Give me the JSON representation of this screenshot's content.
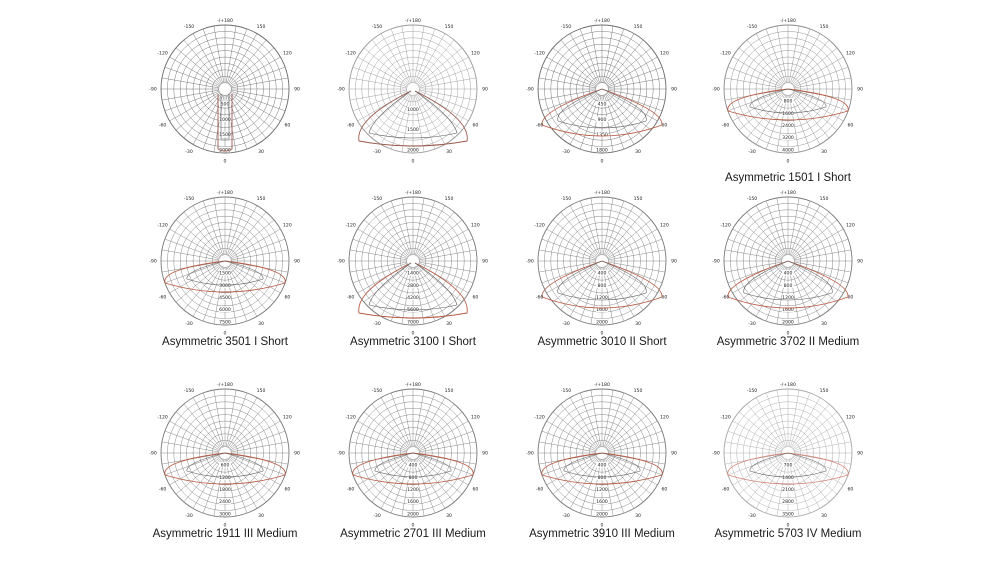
{
  "charts": [
    {
      "caption": "",
      "angle_top": "-/+180",
      "angle_labels": [
        "-150",
        "150",
        "-120",
        "120",
        "-90",
        "90",
        "-60",
        "60",
        "-30",
        "30",
        "0"
      ],
      "radial_labels": [
        "",
        "500",
        "1000",
        "1500",
        "2000"
      ],
      "curve_color": "#9a5a4c",
      "grid_color": "#6b6b6b"
    },
    {
      "caption": "",
      "angle_top": "-/+180",
      "angle_labels": [
        "-150",
        "150",
        "-120",
        "120",
        "-90",
        "90",
        "-60",
        "60",
        "-30",
        "30",
        "0"
      ],
      "radial_labels": [
        "",
        "1000",
        "1500",
        "2000"
      ],
      "curve_color": "#9a5a4c",
      "grid_color": "#9a9a9a"
    },
    {
      "caption": "",
      "angle_top": "-/+180",
      "angle_labels": [
        "-150",
        "150",
        "-120",
        "120",
        "-90",
        "90",
        "-60",
        "60",
        "-30",
        "30",
        "0"
      ],
      "radial_labels": [
        "",
        "450",
        "900",
        "1350",
        "1800"
      ],
      "curve_color": "#b85c44",
      "grid_color": "#6b6b6b"
    },
    {
      "caption": "Asymmetric 1501 I Short",
      "angle_top": "-/+180",
      "angle_labels": [
        "-150",
        "150",
        "-120",
        "120",
        "-90",
        "90",
        "-60",
        "60",
        "-30",
        "30",
        "0"
      ],
      "radial_labels": [
        "",
        "800",
        "1600",
        "2400",
        "3200",
        "4000"
      ],
      "curve_color": "#b85c44",
      "grid_color": "#8a8a8a"
    },
    {
      "caption": "Asymmetric 3501 I Short",
      "angle_top": "-/+180",
      "angle_labels": [
        "-150",
        "150",
        "-120",
        "120",
        "-90",
        "90",
        "-60",
        "60",
        "-30",
        "30",
        "0"
      ],
      "radial_labels": [
        "",
        "1500",
        "3000",
        "4500",
        "6000",
        "7500"
      ],
      "curve_color": "#b85c44",
      "grid_color": "#7a7a7a"
    },
    {
      "caption": "Asymmetric 3100 I Short",
      "angle_top": "-/+180",
      "angle_labels": [
        "-150",
        "150",
        "-120",
        "120",
        "-90",
        "90",
        "-60",
        "60",
        "-30",
        "30",
        "0"
      ],
      "radial_labels": [
        "",
        "1400",
        "2800",
        "4200",
        "5600",
        "7000"
      ],
      "curve_color": "#b85c44",
      "grid_color": "#7a7a7a"
    },
    {
      "caption": "Asymmetric 3010 II Short",
      "angle_top": "-/+180",
      "angle_labels": [
        "-150",
        "150",
        "-120",
        "120",
        "-90",
        "90",
        "-60",
        "60",
        "-30",
        "30",
        "0"
      ],
      "radial_labels": [
        "",
        "400",
        "800",
        "1200",
        "1600",
        "2000"
      ],
      "curve_color": "#b85c44",
      "grid_color": "#7a7a7a"
    },
    {
      "caption": "Asymmetric 3702 II Medium",
      "angle_top": "-/+180",
      "angle_labels": [
        "-150",
        "150",
        "-120",
        "120",
        "-90",
        "90",
        "-60",
        "60",
        "-30",
        "30",
        "0"
      ],
      "radial_labels": [
        "",
        "400",
        "800",
        "1200",
        "1600",
        "2000"
      ],
      "curve_color": "#b85c44",
      "grid_color": "#7a7a7a"
    },
    {
      "caption": "Asymmetric 1911 III Medium",
      "angle_top": "-/+180",
      "angle_labels": [
        "-150",
        "150",
        "-120",
        "120",
        "-90",
        "90",
        "-60",
        "60",
        "-30",
        "30",
        "0"
      ],
      "radial_labels": [
        "",
        "600",
        "1200",
        "1800",
        "2400",
        "3000"
      ],
      "curve_color": "#b85c44",
      "grid_color": "#7a7a7a"
    },
    {
      "caption": "Asymmetric 2701 III Medium",
      "angle_top": "-/+180",
      "angle_labels": [
        "-150",
        "150",
        "-120",
        "120",
        "-90",
        "90",
        "-60",
        "60",
        "-30",
        "30",
        "0"
      ],
      "radial_labels": [
        "",
        "400",
        "800",
        "1200",
        "1600",
        "2000"
      ],
      "curve_color": "#b85c44",
      "grid_color": "#7a7a7a"
    },
    {
      "caption": "Asymmetric 3910 III Medium",
      "angle_top": "-/+180",
      "angle_labels": [
        "-150",
        "150",
        "-120",
        "120",
        "-90",
        "90",
        "-60",
        "60",
        "-30",
        "30",
        "0"
      ],
      "radial_labels": [
        "",
        "400",
        "800",
        "1200",
        "1600",
        "2000"
      ],
      "curve_color": "#b85c44",
      "grid_color": "#7a7a7a"
    },
    {
      "caption": "Asymmetric 5703 IV Medium",
      "angle_top": "-/+180",
      "angle_labels": [
        "-150",
        "150",
        "-120",
        "120",
        "-90",
        "90",
        "-60",
        "60",
        "-30",
        "30",
        "0"
      ],
      "radial_labels": [
        "",
        "700",
        "1400",
        "2100",
        "2800",
        "3500"
      ],
      "curve_color": "#d48a7c",
      "grid_color": "#a8a8a8"
    }
  ]
}
